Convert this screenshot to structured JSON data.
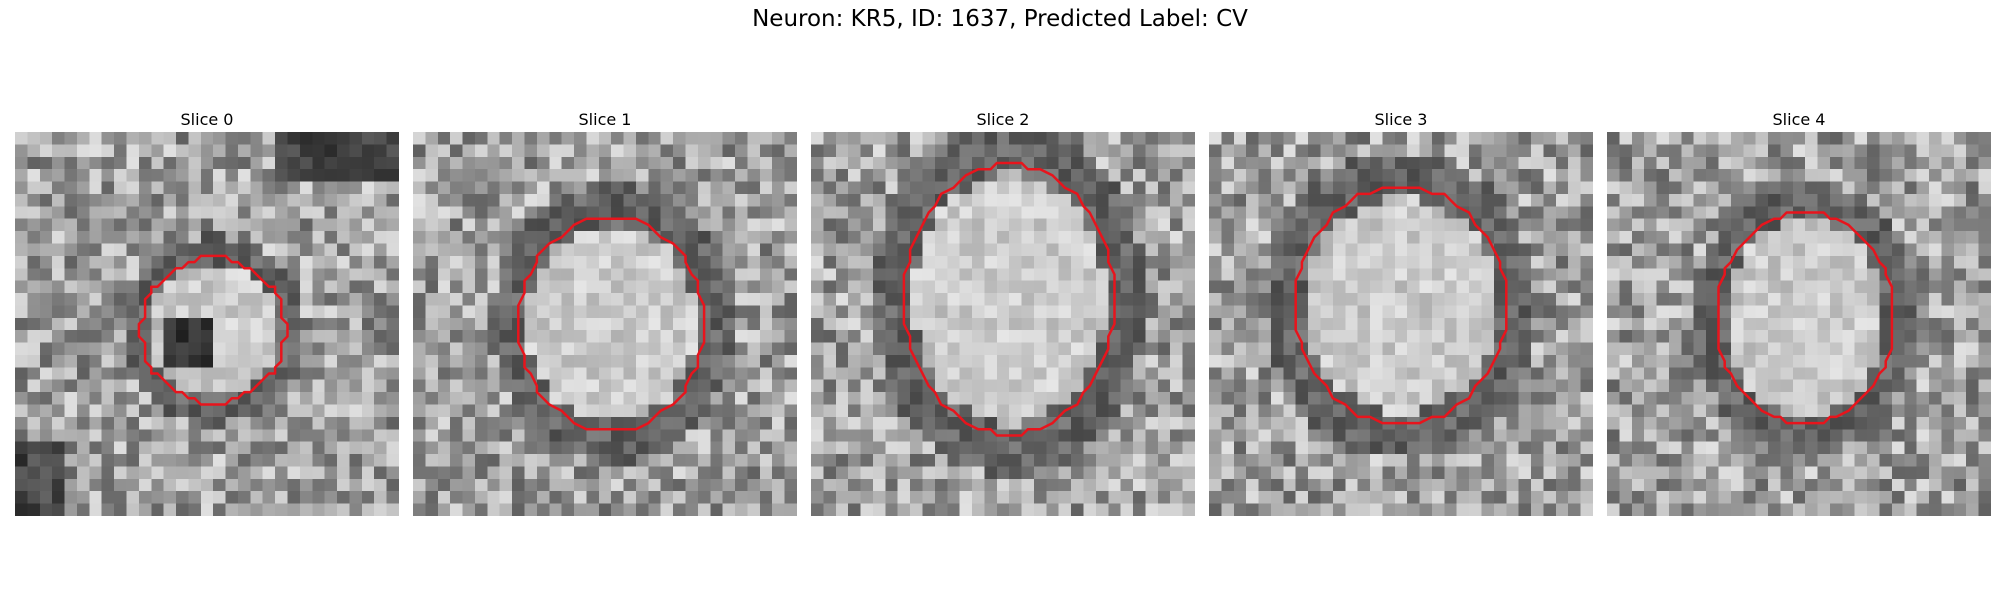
{
  "figure": {
    "title": "Neuron: KR5, ID: 1637, Predicted Label: CV"
  },
  "panels": [
    {
      "title": "Slice 0"
    },
    {
      "title": "Slice 1"
    },
    {
      "title": "Slice 2"
    },
    {
      "title": "Slice 3"
    },
    {
      "title": "Slice 4"
    }
  ],
  "colors": {
    "contour": "#e8141c",
    "background": "#ffffff"
  }
}
